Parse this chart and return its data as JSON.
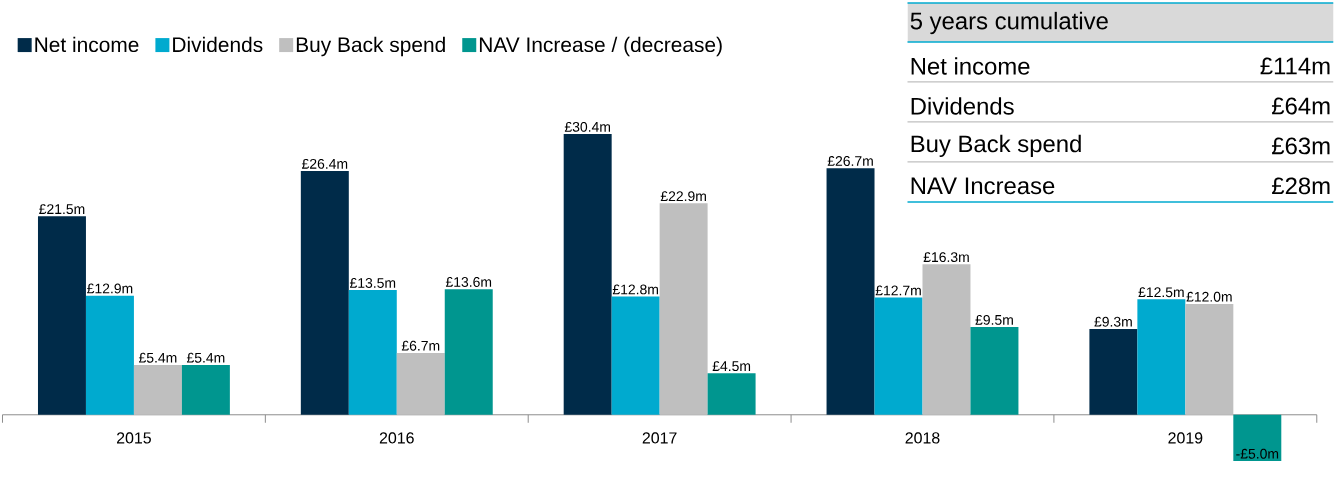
{
  "chart_data": {
    "type": "bar",
    "categories": [
      "2015",
      "2016",
      "2017",
      "2018",
      "2019"
    ],
    "series": [
      {
        "name": "Net income",
        "color": "#002b49",
        "values": [
          21.5,
          26.4,
          30.4,
          26.7,
          9.3
        ],
        "value_labels": [
          "£21.5m",
          "£26.4m",
          "£30.4m",
          "£26.7m",
          "£9.3m"
        ]
      },
      {
        "name": "Dividends",
        "color": "#00aacf",
        "values": [
          12.9,
          13.5,
          12.8,
          12.7,
          12.5
        ],
        "value_labels": [
          "£12.9m",
          "£13.5m",
          "£12.8m",
          "£12.7m",
          "£12.5m"
        ]
      },
      {
        "name": "Buy Back spend",
        "color": "#bfbfbf",
        "values": [
          5.4,
          6.7,
          22.9,
          16.3,
          12.0
        ],
        "value_labels": [
          "£5.4m",
          "£6.7m",
          "£22.9m",
          "£16.3m",
          "£12.0m"
        ]
      },
      {
        "name": "NAV Increase / (decrease)",
        "color": "#00968f",
        "values": [
          5.4,
          13.6,
          4.5,
          9.5,
          -5.0
        ],
        "value_labels": [
          "£5.4m",
          "£13.6m",
          "£4.5m",
          "£9.5m",
          "-£5.0m"
        ]
      }
    ],
    "legend": "top left",
    "annotations": [
      "5 years cumulative",
      "Net income",
      "£114m",
      "Dividends",
      "£64m",
      "Buy Back spend",
      "£63m",
      "NAV Increase",
      "£28m"
    ]
  }
}
